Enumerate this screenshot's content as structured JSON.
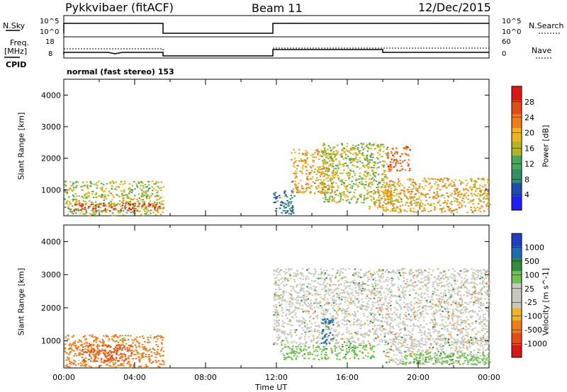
{
  "header": {
    "radar": "Pykkvibaer (fitACF)",
    "beam": "Beam 11",
    "date": "12/Dec/2015"
  },
  "strip": {
    "nsky_label": "N.Sky",
    "nsky_ticks": [
      "10^5",
      "10^0"
    ],
    "nsearch_label": "N.Search",
    "nsearch_ticks": [
      "10^5",
      "10^0"
    ],
    "freq_label": "Freq.",
    "freq_unit": "[MHz]",
    "freq_ticks": [
      "18",
      "8"
    ],
    "nave_label": "Nave",
    "nave_ticks": [
      "60",
      "0"
    ],
    "cpid_label": "CPID",
    "cpid_value": "normal (fast stereo) 153"
  },
  "colors": {
    "power_scale": [
      "#1f1fff",
      "#1a4fb0",
      "#2f8f6a",
      "#49a85a",
      "#b5b51f",
      "#f0b41a",
      "#f07d1a",
      "#e64b14",
      "#e01414"
    ],
    "velocity_scale": [
      "#e01414",
      "#e64b14",
      "#f07d1a",
      "#f0b41a",
      "#c8c8c0",
      "#c8c8c0",
      "#6cc24a",
      "#2f8f3a",
      "#1a6fb0",
      "#1f3fc8"
    ]
  },
  "chart_data": [
    {
      "type": "heatmap",
      "panel": "power",
      "ylabel": "Slant Range [km]",
      "yticks": [
        "1000",
        "2000",
        "3000",
        "4000"
      ],
      "ylim": [
        180,
        4500
      ],
      "colorbar_label": "Power [dB]",
      "colorbar_ticks": [
        "4",
        "8",
        "12",
        "16",
        "20",
        "24",
        "28"
      ],
      "colorbar_range": [
        0,
        32
      ],
      "scatter_regions": [
        {
          "t0": 0.0,
          "t1": 5.6,
          "r0": 200,
          "r1": 1300,
          "level": 16
        },
        {
          "t0": 0.3,
          "t1": 5.4,
          "r0": 350,
          "r1": 600,
          "level": 28
        },
        {
          "t0": 11.8,
          "t1": 13.0,
          "r0": 250,
          "r1": 1000,
          "level": 8
        },
        {
          "t0": 12.8,
          "t1": 15.2,
          "r0": 900,
          "r1": 2300,
          "level": 20
        },
        {
          "t0": 14.5,
          "t1": 18.2,
          "r0": 600,
          "r1": 2500,
          "level": 16
        },
        {
          "t0": 17.2,
          "t1": 18.5,
          "r0": 400,
          "r1": 1000,
          "level": 20
        },
        {
          "t0": 18.2,
          "t1": 19.5,
          "r0": 1600,
          "r1": 2400,
          "level": 24
        },
        {
          "t0": 18.0,
          "t1": 24.0,
          "r0": 300,
          "r1": 1400,
          "level": 20
        }
      ]
    },
    {
      "type": "heatmap",
      "panel": "velocity",
      "ylabel": "Slant Range [km]",
      "yticks": [
        "1000",
        "2000",
        "3000",
        "4000"
      ],
      "ylim": [
        180,
        4500
      ],
      "colorbar_label": "Velocity [m s^-1]",
      "colorbar_ticks": [
        "1000",
        "500",
        "100",
        "25",
        "-25",
        "-100",
        "-500",
        "-1000"
      ],
      "colorbar_range": [
        -1000,
        1000
      ],
      "xlabel": "Time UT",
      "xticks": [
        "00:00",
        "04:00",
        "08:00",
        "12:00",
        "16:00",
        "20:00",
        "00:00"
      ],
      "xlim_hours": [
        0,
        24
      ],
      "scatter_regions": [
        {
          "t0": 0.0,
          "t1": 5.6,
          "r0": 200,
          "r1": 1200,
          "level": -100
        },
        {
          "t0": 1.0,
          "t1": 3.8,
          "r0": 400,
          "r1": 900,
          "level": -500
        },
        {
          "t0": 11.8,
          "t1": 24.0,
          "r0": 900,
          "r1": 3200,
          "level": 0
        },
        {
          "t0": 12.2,
          "t1": 17.5,
          "r0": 450,
          "r1": 900,
          "level": 100
        },
        {
          "t0": 14.5,
          "t1": 15.2,
          "r0": 900,
          "r1": 1700,
          "level": 1000
        },
        {
          "t0": 18.0,
          "t1": 24.0,
          "r0": 300,
          "r1": 1100,
          "level": 0
        },
        {
          "t0": 19.0,
          "t1": 24.0,
          "r0": 300,
          "r1": 700,
          "level": 100
        }
      ]
    }
  ]
}
